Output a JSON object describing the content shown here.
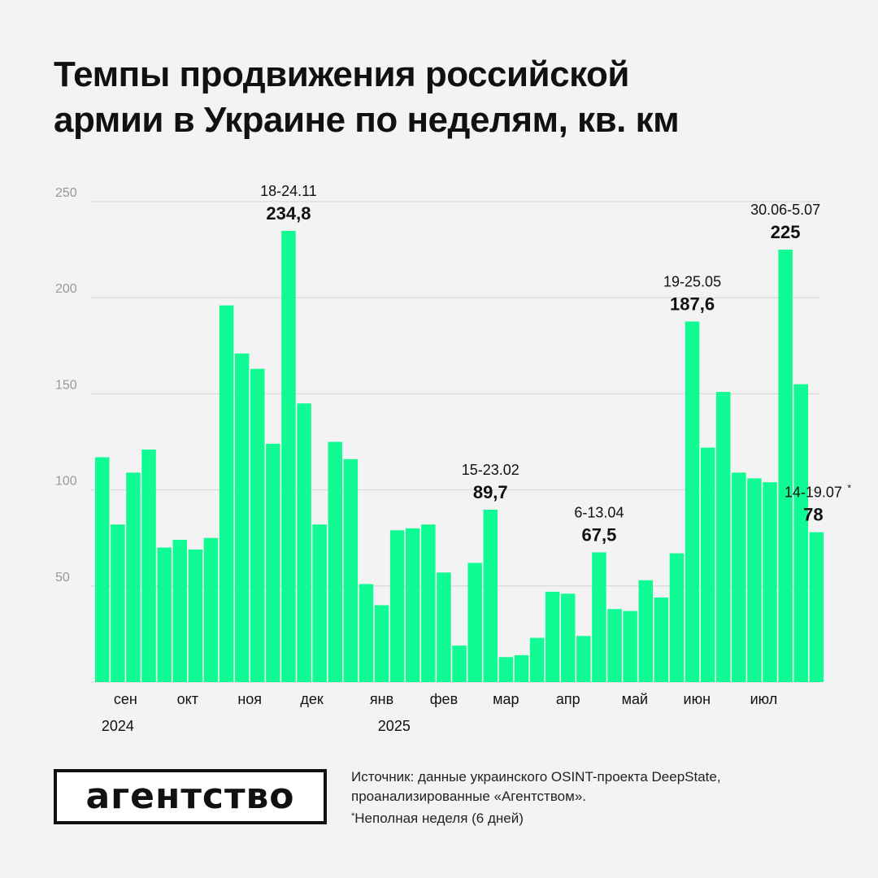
{
  "title_line1": "Темпы продвижения российской",
  "title_line2": "армии в Украине по неделям, кв. км",
  "logo_text": "агентство",
  "source_line1": "Источник: данные украинского OSINT-проекта DeepState,",
  "source_line2": "проанализированные «Агентством».",
  "footnote_mark": "*",
  "footnote_text": "Неполная неделя (6 дней)",
  "colors": {
    "bar": "#11fb94",
    "grid": "#d4d4d4",
    "axis_text": "#999999",
    "text": "#111111"
  },
  "chart_data": {
    "type": "bar",
    "ylim": [
      0,
      250
    ],
    "y_ticks": [
      50,
      100,
      150,
      200,
      250
    ],
    "grid": true,
    "values": [
      117,
      82,
      109,
      121,
      70,
      74,
      69,
      75,
      196,
      171,
      163,
      124,
      234.8,
      145,
      82,
      125,
      116,
      51,
      40,
      79,
      80,
      82,
      57,
      19,
      62,
      89.7,
      13,
      14,
      23,
      47,
      46,
      24,
      67.5,
      38,
      37,
      53,
      44,
      67,
      187.6,
      122,
      151,
      109,
      106,
      104,
      225,
      155,
      78
    ],
    "months": [
      {
        "label": "сен",
        "index": 1.5
      },
      {
        "label": "окт",
        "index": 5.5
      },
      {
        "label": "ноя",
        "index": 9.5
      },
      {
        "label": "дек",
        "index": 13.5
      },
      {
        "label": "янв",
        "index": 18
      },
      {
        "label": "фев",
        "index": 22
      },
      {
        "label": "мар",
        "index": 26
      },
      {
        "label": "апр",
        "index": 30
      },
      {
        "label": "май",
        "index": 34.3
      },
      {
        "label": "июн",
        "index": 38.3
      },
      {
        "label": "июл",
        "index": 42.6
      }
    ],
    "years": [
      {
        "label": "2024",
        "index": 1
      },
      {
        "label": "2025",
        "index": 18.8
      }
    ],
    "annotations": [
      {
        "index": 12,
        "period": "18-24.11",
        "value": "234,8"
      },
      {
        "index": 25,
        "period": "15-23.02",
        "value": "89,7"
      },
      {
        "index": 32,
        "period": "6-13.04",
        "value": "67,5"
      },
      {
        "index": 38,
        "period": "19-25.05",
        "value": "187,6"
      },
      {
        "index": 44,
        "period": "30.06-5.07",
        "value": "225"
      },
      {
        "index": 46,
        "period": "14-19.07",
        "value": "78",
        "footnote": "*"
      }
    ]
  }
}
